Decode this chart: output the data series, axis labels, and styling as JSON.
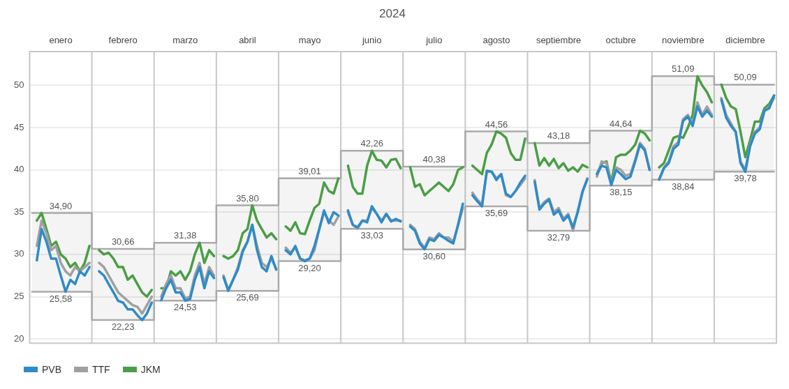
{
  "chart_data": {
    "type": "line",
    "title": "2024",
    "categories": [
      null,
      null,
      null,
      null,
      null,
      null,
      "enero",
      null,
      null,
      null,
      null,
      null,
      null,
      null,
      null,
      null,
      null,
      null,
      null,
      "febrero",
      null,
      null,
      null,
      null,
      null,
      null,
      null,
      null,
      null,
      null,
      null,
      null,
      "marzo",
      null,
      null,
      null,
      null,
      null,
      null,
      null,
      null,
      null,
      null,
      null,
      null,
      "abril",
      null,
      null,
      null,
      null,
      null,
      null,
      null,
      null,
      null,
      null,
      null,
      null,
      "mayo",
      null,
      null,
      null,
      null,
      null,
      null,
      null,
      null,
      null,
      null,
      null,
      null,
      "junio",
      null,
      null,
      null,
      null,
      null,
      null,
      null,
      null,
      null,
      null,
      null,
      null,
      "julio",
      null,
      null,
      null,
      null,
      null,
      null,
      null,
      null,
      null,
      null,
      null,
      null,
      "agosto",
      null,
      null,
      null,
      null,
      null,
      null,
      null,
      null,
      null,
      null,
      null,
      null,
      "septiembre",
      null,
      null,
      null,
      null,
      null,
      null,
      null,
      null,
      null,
      null,
      null,
      null,
      "octubre",
      null,
      null,
      null,
      null,
      null,
      null,
      null,
      null,
      null,
      null,
      null,
      null,
      "noviembre",
      null,
      null,
      null,
      null,
      null,
      null,
      null,
      null,
      null,
      null,
      null,
      null,
      "diciembre",
      null,
      null,
      null,
      null,
      null,
      null
    ],
    "ylim": [
      19.5,
      54
    ],
    "yticks": [
      20,
      25,
      30,
      35,
      40,
      45,
      50
    ],
    "grid": "y",
    "legend": "bottom left",
    "marker": "none",
    "series": [
      {
        "name": "PVB",
        "color": "#2e8bc9",
        "values": [
          null,
          29.3,
          33,
          31.5,
          29.5,
          29.5,
          27.5,
          25.6,
          27,
          26.5,
          28,
          27.5,
          28.5,
          null,
          28,
          27.5,
          26.5,
          25.5,
          24.5,
          24.3,
          23.5,
          23.5,
          22.8,
          22.23,
          23,
          24.3,
          null,
          24.6,
          26,
          27,
          25.5,
          25.5,
          24.53,
          24.7,
          27,
          28.5,
          26,
          28,
          27.2,
          null,
          27.3,
          25.7,
          27,
          28.2,
          30.3,
          31.5,
          33.5,
          30.5,
          28.5,
          28,
          29.8,
          28.2,
          null,
          30.5,
          30,
          31,
          29.5,
          29.2,
          29.5,
          31,
          33,
          35.2,
          33.7,
          35,
          34.6,
          null,
          35.2,
          33.5,
          33.2,
          34,
          33.8,
          35.7,
          34.8,
          33.8,
          34.8,
          33.9,
          34.2,
          33.9,
          null,
          33.3,
          32.8,
          31.3,
          30.6,
          31.8,
          31.6,
          32.3,
          32,
          31.6,
          31.3,
          33.5,
          36,
          null,
          37,
          36.3,
          35.69,
          39.9,
          39.8,
          38.8,
          39.5,
          37.2,
          36.8,
          37.5,
          38.5,
          39.3,
          null,
          38.6,
          35.3,
          36,
          36.5,
          34.7,
          35.2,
          34,
          34.6,
          33.2,
          35,
          37.4,
          38.9,
          null,
          39.5,
          40.5,
          40.3,
          38.2,
          40,
          39.5,
          38.9,
          39.2,
          41,
          43,
          42.3,
          40,
          null,
          38.84,
          40.2,
          40.8,
          42.5,
          43,
          45.8,
          46.3,
          45.2,
          47.5,
          46.3,
          47,
          46.3,
          null,
          48.3,
          46.2,
          45.2,
          44.5,
          40.8,
          39.78,
          42.8,
          44.3,
          44.8,
          47,
          47.3,
          48.8
        ]
      },
      {
        "name": "TTF",
        "color": "#a0a0a0",
        "values": [
          null,
          31,
          34,
          32.5,
          30.5,
          31,
          29,
          28,
          27.5,
          28.5,
          28,
          28.5,
          29,
          null,
          29,
          28.5,
          27.5,
          26.5,
          25.5,
          25,
          24.5,
          24,
          23.8,
          23,
          24,
          25,
          null,
          25,
          26.5,
          27.5,
          26,
          26,
          24.8,
          25,
          27.5,
          29,
          26.5,
          28.5,
          27.5,
          null,
          27.5,
          25.8,
          27,
          28.5,
          30.5,
          31.5,
          33.5,
          31,
          29,
          28.5,
          29.5,
          28.3,
          null,
          30.8,
          30.2,
          30.8,
          29.5,
          29.3,
          29.5,
          30.5,
          33,
          35,
          34,
          33.5,
          34.5,
          null,
          35,
          33.5,
          33.03,
          34,
          34,
          35.5,
          34.8,
          34,
          34.8,
          34,
          34,
          34,
          null,
          33.5,
          33,
          31.5,
          30.8,
          32,
          31.8,
          32.5,
          32,
          32,
          31.5,
          33.5,
          35.5,
          null,
          37.3,
          36.5,
          35.9,
          39.8,
          39.8,
          39,
          39.5,
          37,
          36.8,
          37.5,
          38.2,
          39,
          null,
          38.8,
          35.5,
          36.2,
          36.6,
          35,
          35.5,
          34.2,
          34.8,
          32.79,
          35.2,
          37.5,
          39,
          null,
          39.2,
          41,
          40.8,
          38.3,
          40.3,
          40,
          39.3,
          39.5,
          41.2,
          43.2,
          42.5,
          40,
          null,
          38.9,
          40.3,
          41,
          42.8,
          43.3,
          46,
          46.5,
          45.5,
          48,
          46.5,
          47.5,
          46.5,
          null,
          48.5,
          46.5,
          45.5,
          44.5,
          41,
          40,
          43,
          44.5,
          45,
          47,
          47.5,
          48.5
        ]
      },
      {
        "name": "JKM",
        "color": "#4a9e45",
        "values": [
          null,
          34,
          34.9,
          33,
          31,
          31.5,
          30,
          29.5,
          28.5,
          29,
          28,
          29,
          31,
          null,
          30.5,
          30,
          30.2,
          29.5,
          28.5,
          28.5,
          27,
          27.5,
          26.5,
          25.5,
          25,
          25.8,
          null,
          26,
          26,
          28,
          27.5,
          28,
          27,
          28,
          30,
          31.38,
          29,
          30.5,
          29.8,
          null,
          29.8,
          29.5,
          29.8,
          30.5,
          32.5,
          33,
          35.8,
          34,
          33,
          32,
          32.5,
          31.8,
          null,
          33.3,
          32.8,
          33.8,
          32.5,
          32.4,
          34,
          35.5,
          36,
          38.5,
          37.5,
          37.2,
          39,
          null,
          40.5,
          38,
          37.2,
          37.2,
          40.5,
          42.26,
          41.2,
          41.1,
          40.3,
          41.2,
          41.3,
          40.2,
          null,
          40.3,
          38,
          38.3,
          37,
          37.5,
          38,
          38.5,
          38,
          37.5,
          38.3,
          40,
          40.3,
          null,
          40.5,
          40,
          39.5,
          42,
          43,
          44.56,
          44.3,
          43.8,
          42,
          41.2,
          41.2,
          43.7,
          null,
          43.18,
          40.5,
          41.4,
          40.5,
          41.3,
          40.2,
          40.8,
          39.9,
          40.3,
          39.8,
          40.6,
          40.3,
          null,
          39.5,
          40.8,
          41,
          38.5,
          41.5,
          41.8,
          41.8,
          42.3,
          43,
          44.64,
          44.3,
          43.5,
          null,
          40.3,
          40.8,
          42.3,
          43.8,
          44,
          43.8,
          45,
          46.5,
          51.09,
          50,
          49.2,
          48,
          null,
          50.09,
          48.5,
          47.5,
          47.2,
          44.5,
          41.5,
          43.5,
          45.7,
          45.7,
          47.3,
          47.8,
          48.8
        ]
      },
      {
        "type": "step",
        "color": "#aaaaaa",
        "values": [
          34.9,
          34.9,
          34.9,
          34.9,
          34.9,
          34.9,
          34.9,
          34.9,
          34.9,
          34.9,
          34.9,
          34.9,
          34.9,
          30.66,
          30.66,
          30.66,
          30.66,
          30.66,
          30.66,
          30.66,
          30.66,
          30.66,
          30.66,
          30.66,
          30.66,
          30.66,
          31.38,
          31.38,
          31.38,
          31.38,
          31.38,
          31.38,
          31.38,
          31.38,
          31.38,
          31.38,
          31.38,
          31.38,
          31.38,
          35.8,
          35.8,
          35.8,
          35.8,
          35.8,
          35.8,
          35.8,
          35.8,
          35.8,
          35.8,
          35.8,
          35.8,
          35.8,
          39.01,
          39.01,
          39.01,
          39.01,
          39.01,
          39.01,
          39.01,
          39.01,
          39.01,
          39.01,
          39.01,
          39.01,
          39.01,
          42.26,
          42.26,
          42.26,
          42.26,
          42.26,
          42.26,
          42.26,
          42.26,
          42.26,
          42.26,
          42.26,
          42.26,
          42.26,
          40.38,
          40.38,
          40.38,
          40.38,
          40.38,
          40.38,
          40.38,
          40.38,
          40.38,
          40.38,
          40.38,
          40.38,
          40.38,
          44.56,
          44.56,
          44.56,
          44.56,
          44.56,
          44.56,
          44.56,
          44.56,
          44.56,
          44.56,
          44.56,
          44.56,
          44.56,
          43.18,
          43.18,
          43.18,
          43.18,
          43.18,
          43.18,
          43.18,
          43.18,
          43.18,
          43.18,
          43.18,
          43.18,
          43.18,
          44.64,
          44.64,
          44.64,
          44.64,
          44.64,
          44.64,
          44.64,
          44.64,
          44.64,
          44.64,
          44.64,
          44.64,
          44.64,
          51.09,
          51.09,
          51.09,
          51.09,
          51.09,
          51.09,
          51.09,
          51.09,
          51.09,
          51.09,
          51.09,
          51.09,
          51.09,
          50.09,
          50.09,
          50.09,
          50.09,
          50.09,
          50.09,
          50.09,
          50.09,
          50.09,
          50.09,
          50.09,
          50.09,
          50.09
        ],
        "value_labels": [
          null,
          null,
          null,
          null,
          null,
          null,
          "34,90",
          null,
          null,
          null,
          null,
          null,
          null,
          null,
          null,
          null,
          null,
          null,
          null,
          "30,66",
          null,
          null,
          null,
          null,
          null,
          null,
          null,
          null,
          null,
          null,
          null,
          null,
          "31,38",
          null,
          null,
          null,
          null,
          null,
          null,
          null,
          null,
          null,
          null,
          null,
          null,
          "35,80",
          null,
          null,
          null,
          null,
          null,
          null,
          null,
          null,
          null,
          null,
          null,
          null,
          "39,01",
          null,
          null,
          null,
          null,
          null,
          null,
          null,
          null,
          null,
          null,
          null,
          null,
          "42,26",
          null,
          null,
          null,
          null,
          null,
          null,
          null,
          null,
          null,
          null,
          null,
          null,
          "40,38",
          null,
          null,
          null,
          null,
          null,
          null,
          null,
          null,
          null,
          null,
          null,
          null,
          "44,56",
          null,
          null,
          null,
          null,
          null,
          null,
          null,
          null,
          null,
          null,
          null,
          null,
          "43,18",
          null,
          null,
          null,
          null,
          null,
          null,
          null,
          null,
          null,
          null,
          null,
          null,
          "44,64",
          null,
          null,
          null,
          null,
          null,
          null,
          null,
          null,
          null,
          null,
          null,
          null,
          "51,09",
          null,
          null,
          null,
          null,
          null,
          null,
          null,
          null,
          null,
          null,
          null,
          null,
          "50,09",
          null,
          null,
          null,
          null,
          null,
          null
        ],
        "lower": [
          25.58,
          25.58,
          25.58,
          25.58,
          25.58,
          25.58,
          25.58,
          25.58,
          25.58,
          25.58,
          25.58,
          25.58,
          25.58,
          22.23,
          22.23,
          22.23,
          22.23,
          22.23,
          22.23,
          22.23,
          22.23,
          22.23,
          22.23,
          22.23,
          22.23,
          22.23,
          24.53,
          24.53,
          24.53,
          24.53,
          24.53,
          24.53,
          24.53,
          24.53,
          24.53,
          24.53,
          24.53,
          24.53,
          24.53,
          25.69,
          25.69,
          25.69,
          25.69,
          25.69,
          25.69,
          25.69,
          25.69,
          25.69,
          25.69,
          25.69,
          25.69,
          25.69,
          29.2,
          29.2,
          29.2,
          29.2,
          29.2,
          29.2,
          29.2,
          29.2,
          29.2,
          29.2,
          29.2,
          29.2,
          29.2,
          33.03,
          33.03,
          33.03,
          33.03,
          33.03,
          33.03,
          33.03,
          33.03,
          33.03,
          33.03,
          33.03,
          33.03,
          33.03,
          30.6,
          30.6,
          30.6,
          30.6,
          30.6,
          30.6,
          30.6,
          30.6,
          30.6,
          30.6,
          30.6,
          30.6,
          30.6,
          35.69,
          35.69,
          35.69,
          35.69,
          35.69,
          35.69,
          35.69,
          35.69,
          35.69,
          35.69,
          35.69,
          35.69,
          35.69,
          32.79,
          32.79,
          32.79,
          32.79,
          32.79,
          32.79,
          32.79,
          32.79,
          32.79,
          32.79,
          32.79,
          32.79,
          32.79,
          38.15,
          38.15,
          38.15,
          38.15,
          38.15,
          38.15,
          38.15,
          38.15,
          38.15,
          38.15,
          38.15,
          38.15,
          38.15,
          38.84,
          38.84,
          38.84,
          38.84,
          38.84,
          38.84,
          38.84,
          38.84,
          38.84,
          38.84,
          38.84,
          38.84,
          38.84,
          39.78,
          39.78,
          39.78,
          39.78,
          39.78,
          39.78,
          39.78,
          39.78,
          39.78,
          39.78,
          39.78,
          39.78,
          39.78
        ],
        "upper": [
          34.9,
          34.9,
          34.9,
          34.9,
          34.9,
          34.9,
          34.9,
          34.9,
          34.9,
          34.9,
          34.9,
          34.9,
          34.9,
          30.66,
          30.66,
          30.66,
          30.66,
          30.66,
          30.66,
          30.66,
          30.66,
          30.66,
          30.66,
          30.66,
          30.66,
          30.66,
          31.38,
          31.38,
          31.38,
          31.38,
          31.38,
          31.38,
          31.38,
          31.38,
          31.38,
          31.38,
          31.38,
          31.38,
          31.38,
          35.8,
          35.8,
          35.8,
          35.8,
          35.8,
          35.8,
          35.8,
          35.8,
          35.8,
          35.8,
          35.8,
          35.8,
          35.8,
          39.01,
          39.01,
          39.01,
          39.01,
          39.01,
          39.01,
          39.01,
          39.01,
          39.01,
          39.01,
          39.01,
          39.01,
          39.01,
          42.26,
          42.26,
          42.26,
          42.26,
          42.26,
          42.26,
          42.26,
          42.26,
          42.26,
          42.26,
          42.26,
          42.26,
          42.26,
          40.38,
          40.38,
          40.38,
          40.38,
          40.38,
          40.38,
          40.38,
          40.38,
          40.38,
          40.38,
          40.38,
          40.38,
          40.38,
          44.56,
          44.56,
          44.56,
          44.56,
          44.56,
          44.56,
          44.56,
          44.56,
          44.56,
          44.56,
          44.56,
          44.56,
          44.56,
          43.18,
          43.18,
          43.18,
          43.18,
          43.18,
          43.18,
          43.18,
          43.18,
          43.18,
          43.18,
          43.18,
          43.18,
          43.18,
          44.64,
          44.64,
          44.64,
          44.64,
          44.64,
          44.64,
          44.64,
          44.64,
          44.64,
          44.64,
          44.64,
          44.64,
          44.64,
          51.09,
          51.09,
          51.09,
          51.09,
          51.09,
          51.09,
          51.09,
          51.09,
          51.09,
          51.09,
          51.09,
          51.09,
          51.09,
          50.09,
          50.09,
          50.09,
          50.09,
          50.09,
          50.09,
          50.09,
          50.09,
          50.09,
          50.09,
          50.09,
          50.09,
          50.09
        ]
      },
      {
        "type": "step",
        "color": "#aaaaaa",
        "values": [
          25.58,
          25.58,
          25.58,
          25.58,
          25.58,
          25.58,
          25.58,
          25.58,
          25.58,
          25.58,
          25.58,
          25.58,
          25.58,
          22.23,
          22.23,
          22.23,
          22.23,
          22.23,
          22.23,
          22.23,
          22.23,
          22.23,
          22.23,
          22.23,
          22.23,
          22.23,
          24.53,
          24.53,
          24.53,
          24.53,
          24.53,
          24.53,
          24.53,
          24.53,
          24.53,
          24.53,
          24.53,
          24.53,
          24.53,
          25.69,
          25.69,
          25.69,
          25.69,
          25.69,
          25.69,
          25.69,
          25.69,
          25.69,
          25.69,
          25.69,
          25.69,
          25.69,
          29.2,
          29.2,
          29.2,
          29.2,
          29.2,
          29.2,
          29.2,
          29.2,
          29.2,
          29.2,
          29.2,
          29.2,
          29.2,
          33.03,
          33.03,
          33.03,
          33.03,
          33.03,
          33.03,
          33.03,
          33.03,
          33.03,
          33.03,
          33.03,
          33.03,
          33.03,
          30.6,
          30.6,
          30.6,
          30.6,
          30.6,
          30.6,
          30.6,
          30.6,
          30.6,
          30.6,
          30.6,
          30.6,
          30.6,
          35.69,
          35.69,
          35.69,
          35.69,
          35.69,
          35.69,
          35.69,
          35.69,
          35.69,
          35.69,
          35.69,
          35.69,
          35.69,
          32.79,
          32.79,
          32.79,
          32.79,
          32.79,
          32.79,
          32.79,
          32.79,
          32.79,
          32.79,
          32.79,
          32.79,
          32.79,
          38.15,
          38.15,
          38.15,
          38.15,
          38.15,
          38.15,
          38.15,
          38.15,
          38.15,
          38.15,
          38.15,
          38.15,
          38.15,
          38.84,
          38.84,
          38.84,
          38.84,
          38.84,
          38.84,
          38.84,
          38.84,
          38.84,
          38.84,
          38.84,
          38.84,
          38.84,
          39.78,
          39.78,
          39.78,
          39.78,
          39.78,
          39.78,
          39.78,
          39.78,
          39.78,
          39.78,
          39.78,
          39.78,
          39.78
        ],
        "value_labels": [
          null,
          null,
          null,
          null,
          null,
          null,
          "25,58",
          null,
          null,
          null,
          null,
          null,
          null,
          null,
          null,
          null,
          null,
          null,
          null,
          "22,23",
          null,
          null,
          null,
          null,
          null,
          null,
          null,
          null,
          null,
          null,
          null,
          null,
          "24,53",
          null,
          null,
          null,
          null,
          null,
          null,
          null,
          null,
          null,
          null,
          null,
          null,
          "25,69",
          null,
          null,
          null,
          null,
          null,
          null,
          null,
          null,
          null,
          null,
          null,
          null,
          "29,20",
          null,
          null,
          null,
          null,
          null,
          null,
          null,
          null,
          null,
          null,
          null,
          null,
          "33,03",
          null,
          null,
          null,
          null,
          null,
          null,
          null,
          null,
          null,
          null,
          null,
          null,
          "30,60",
          null,
          null,
          null,
          null,
          null,
          null,
          null,
          null,
          null,
          null,
          null,
          null,
          "35,69",
          null,
          null,
          null,
          null,
          null,
          null,
          null,
          null,
          null,
          null,
          null,
          null,
          "32,79",
          null,
          null,
          null,
          null,
          null,
          null,
          null,
          null,
          null,
          null,
          null,
          null,
          "38,15",
          null,
          null,
          null,
          null,
          null,
          null,
          null,
          null,
          null,
          null,
          null,
          null,
          "38,84",
          null,
          null,
          null,
          null,
          null,
          null,
          null,
          null,
          null,
          null,
          null,
          null,
          "39,78",
          null,
          null,
          null,
          null,
          null,
          null
        ]
      }
    ]
  }
}
